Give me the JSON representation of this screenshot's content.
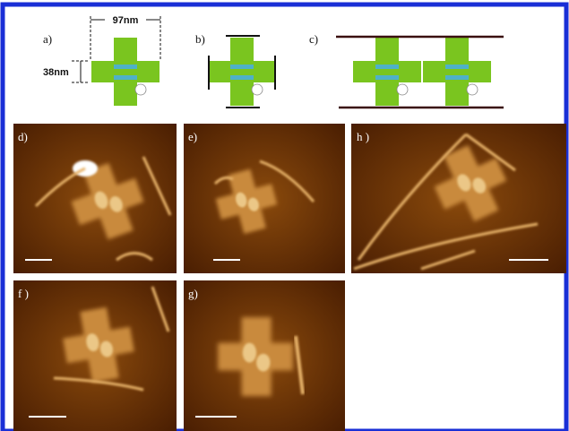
{
  "panels": {
    "a": {
      "label": "a)",
      "width_label": "97nm",
      "height_label": "38nm"
    },
    "b": {
      "label": "b)"
    },
    "c": {
      "label": "c)"
    },
    "d": {
      "label": "d)"
    },
    "e": {
      "label": "e)"
    },
    "h": {
      "label": "h )"
    },
    "f": {
      "label": "f )"
    },
    "g": {
      "label": "g)"
    }
  }
}
